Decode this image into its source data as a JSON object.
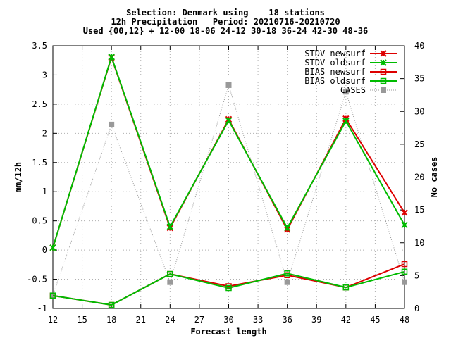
{
  "chart_data": {
    "type": "line",
    "title_lines": [
      "Selection: Denmark using    18 stations",
      "12h Precipitation   Period: 20210716-20210720",
      "Used {00,12} + 12-00 18-06 24-12 30-18 36-24 42-30 48-36"
    ],
    "xlabel": "Forecast length",
    "ylabel": "mm/12h",
    "y2label": "No cases",
    "xlim": [
      12,
      48
    ],
    "ylim": [
      -1,
      3.5
    ],
    "y2lim": [
      0,
      40
    ],
    "x_ticks": [
      12,
      15,
      18,
      21,
      24,
      27,
      30,
      33,
      36,
      39,
      42,
      45,
      48
    ],
    "y_ticks": [
      -1,
      -0.5,
      0,
      0.5,
      1,
      1.5,
      2,
      2.5,
      3,
      3.5
    ],
    "y2_ticks": [
      0,
      5,
      10,
      15,
      20,
      25,
      30,
      35,
      40
    ],
    "grid": true,
    "legend_position": "top-right",
    "x": [
      12,
      18,
      24,
      30,
      36,
      42,
      48
    ],
    "series": [
      {
        "name": "STDV newsurf",
        "axis": "y",
        "color": "#dd0000",
        "marker": "x",
        "values": [
          0.04,
          3.3,
          0.38,
          2.24,
          0.35,
          2.25,
          0.64
        ]
      },
      {
        "name": "STDV oldsurf",
        "axis": "y",
        "color": "#00bb00",
        "marker": "x",
        "values": [
          0.04,
          3.31,
          0.4,
          2.22,
          0.38,
          2.21,
          0.43
        ]
      },
      {
        "name": "BIAS newsurf",
        "axis": "y",
        "color": "#dd0000",
        "marker": "square",
        "values": [
          -0.78,
          -0.94,
          -0.41,
          -0.62,
          -0.43,
          -0.64,
          -0.24
        ]
      },
      {
        "name": "BIAS oldsurf",
        "axis": "y",
        "color": "#00bb00",
        "marker": "square",
        "values": [
          -0.78,
          -0.94,
          -0.41,
          -0.65,
          -0.4,
          -0.64,
          -0.37
        ]
      },
      {
        "name": "CASES",
        "axis": "y2",
        "color": "#999999",
        "marker": "filled-square",
        "values": [
          2,
          28,
          4,
          34,
          4,
          33,
          4
        ]
      }
    ]
  }
}
